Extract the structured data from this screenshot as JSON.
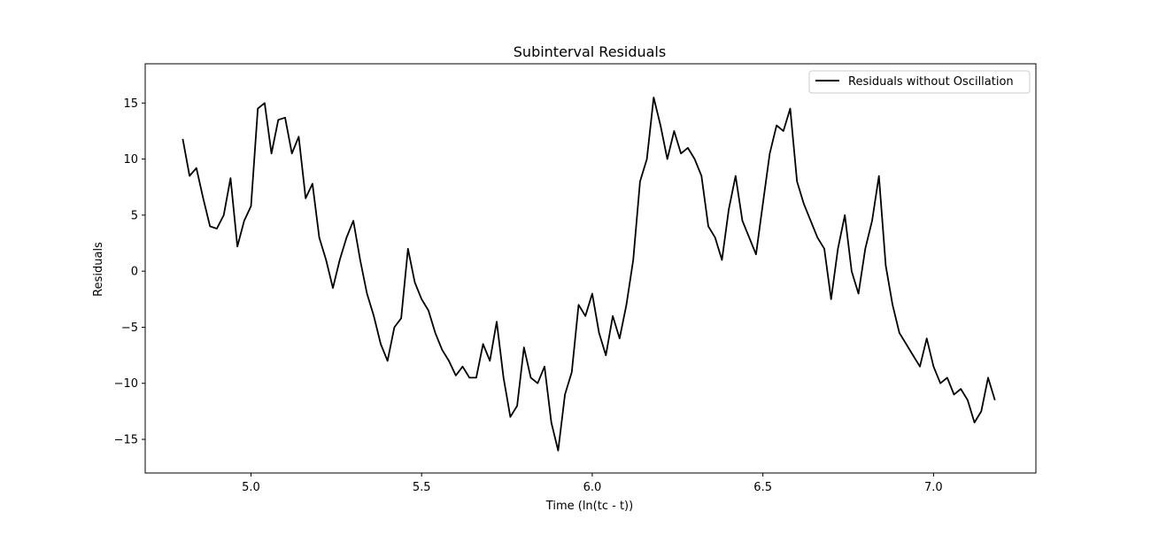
{
  "chart_data": {
    "type": "line",
    "title": "Subinterval Residuals",
    "xlabel": "Time (ln(tc - t))",
    "ylabel": "Residuals",
    "xlim": [
      4.69,
      7.3
    ],
    "ylim": [
      -18,
      18.5
    ],
    "xticks": [
      5.0,
      5.5,
      6.0,
      6.5,
      7.0
    ],
    "xtick_labels": [
      "5.0",
      "5.5",
      "6.0",
      "6.5",
      "7.0"
    ],
    "yticks": [
      15,
      10,
      5,
      0,
      -5,
      -10,
      -15
    ],
    "ytick_labels": [
      "15",
      "10",
      "5",
      "0",
      "−5",
      "−10",
      "−15"
    ],
    "grid": false,
    "legend_position": "top-right",
    "series": [
      {
        "name": "Residuals without Oscillation",
        "color": "#000000",
        "x": [
          4.8,
          4.82,
          4.84,
          4.86,
          4.88,
          4.9,
          4.92,
          4.94,
          4.96,
          4.98,
          5.0,
          5.02,
          5.04,
          5.06,
          5.08,
          5.1,
          5.12,
          5.14,
          5.16,
          5.18,
          5.2,
          5.22,
          5.24,
          5.26,
          5.28,
          5.3,
          5.32,
          5.34,
          5.36,
          5.38,
          5.4,
          5.42,
          5.44,
          5.46,
          5.48,
          5.5,
          5.52,
          5.54,
          5.56,
          5.58,
          5.6,
          5.62,
          5.64,
          5.66,
          5.68,
          5.7,
          5.72,
          5.74,
          5.76,
          5.78,
          5.8,
          5.82,
          5.84,
          5.86,
          5.88,
          5.9,
          5.92,
          5.94,
          5.96,
          5.98,
          6.0,
          6.02,
          6.04,
          6.06,
          6.08,
          6.1,
          6.12,
          6.14,
          6.16,
          6.18,
          6.2,
          6.22,
          6.24,
          6.26,
          6.28,
          6.3,
          6.32,
          6.34,
          6.36,
          6.38,
          6.4,
          6.42,
          6.44,
          6.46,
          6.48,
          6.5,
          6.52,
          6.54,
          6.56,
          6.58,
          6.6,
          6.62,
          6.64,
          6.66,
          6.68,
          6.7,
          6.72,
          6.74,
          6.76,
          6.78,
          6.8,
          6.82,
          6.84,
          6.86,
          6.88,
          6.9,
          6.92,
          6.94,
          6.96,
          6.98,
          7.0,
          7.02,
          7.04,
          7.06,
          7.08,
          7.1,
          7.12,
          7.14,
          7.16,
          7.18
        ],
        "values": [
          11.8,
          8.5,
          9.2,
          6.5,
          4.0,
          3.8,
          5.0,
          8.3,
          2.2,
          4.5,
          5.8,
          14.5,
          15.0,
          10.5,
          13.5,
          13.7,
          10.5,
          12.0,
          6.5,
          7.8,
          3.0,
          1.0,
          -1.5,
          1.0,
          3.0,
          4.5,
          1.0,
          -2.0,
          -4.0,
          -6.5,
          -8.0,
          -5.0,
          -4.2,
          2.0,
          -1.0,
          -2.5,
          -3.5,
          -5.5,
          -7.0,
          -8.0,
          -9.3,
          -8.5,
          -9.5,
          -9.5,
          -6.5,
          -8.0,
          -4.5,
          -9.5,
          -13.0,
          -12.0,
          -6.8,
          -9.5,
          -10.0,
          -8.5,
          -13.5,
          -16.0,
          -11.0,
          -9.0,
          -3.0,
          -4.0,
          -2.0,
          -5.5,
          -7.5,
          -4.0,
          -6.0,
          -3.0,
          1.0,
          8.0,
          10.0,
          15.5,
          13.0,
          10.0,
          12.5,
          10.5,
          11.0,
          10.0,
          8.5,
          4.0,
          3.0,
          1.0,
          5.5,
          8.5,
          4.5,
          3.0,
          1.5,
          6.0,
          10.5,
          13.0,
          12.5,
          14.5,
          8.0,
          6.0,
          4.5,
          3.0,
          2.0,
          -2.5,
          2.0,
          5.0,
          0.0,
          -2.0,
          2.0,
          4.5,
          8.5,
          0.5,
          -3.0,
          -5.5,
          -6.5,
          -7.5,
          -8.5,
          -6.0,
          -8.5,
          -10.0,
          -9.5,
          -11.0,
          -10.5,
          -11.5,
          -13.5,
          -12.5,
          -9.5,
          -11.5
        ]
      }
    ]
  }
}
